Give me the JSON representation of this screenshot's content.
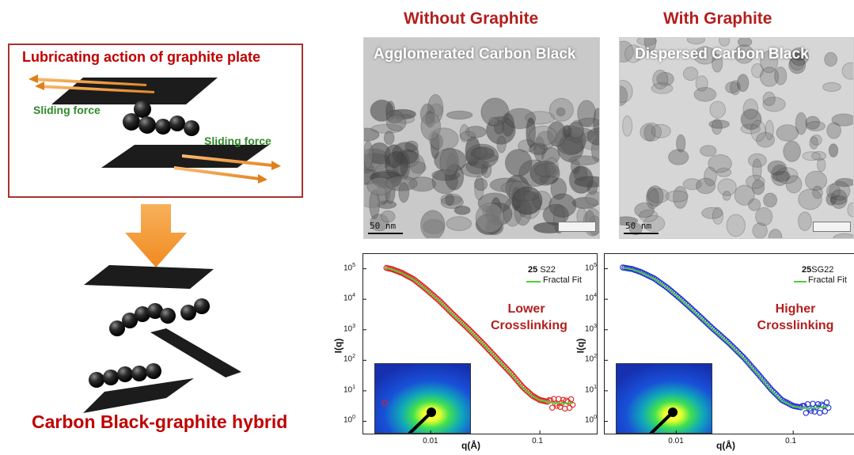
{
  "schematic": {
    "title": "Lubricating action of graphite plate",
    "sliding_force_left": "Sliding force",
    "sliding_force_right": "Sliding force",
    "hybrid_label": "Carbon Black-graphite hybrid"
  },
  "columns": {
    "without": {
      "header": "Without Graphite",
      "tem_label": "Agglomerated Carbon Black",
      "scale_bar": "50 nm"
    },
    "with": {
      "header": "With Graphite",
      "tem_label": "Dispersed Carbon Black",
      "scale_bar": "50 nm"
    }
  },
  "colors": {
    "title_red": "#c00000",
    "sliding_green": "#2f8a2a",
    "arrow_orange": "#f0962f",
    "series_red": "#e0211d",
    "series_blue": "#1f2fd6",
    "fit_green": "#4fce3a"
  },
  "chart_data": [
    {
      "type": "scatter",
      "xscale": "log",
      "yscale": "log",
      "xlabel": "q(Å)",
      "ylabel": "I(q)",
      "xlim": [
        0.003,
        0.25
      ],
      "ylim": [
        0.6,
        200000
      ],
      "x_ticks": [
        "0.01",
        "0.1"
      ],
      "y_ticks": [
        "10^0",
        "10^1",
        "10^2",
        "10^3",
        "10^4",
        "10^5"
      ],
      "legend": {
        "sample_prefix": "25",
        "sample_name": "S22",
        "fit_name": "Fractal Fit",
        "position": "top-right"
      },
      "annotation": [
        "Lower",
        "Crosslinking"
      ],
      "series": [
        {
          "name": "S22",
          "marker": "open-circle",
          "color": "#e0211d",
          "x": [
            0.0038,
            0.0045,
            0.0055,
            0.007,
            0.009,
            0.012,
            0.016,
            0.022,
            0.03,
            0.04,
            0.055,
            0.07,
            0.085,
            0.1,
            0.12,
            0.15,
            0.18,
            0.2
          ],
          "y": [
            110000,
            95000,
            72000,
            45000,
            22000,
            9000,
            3200,
            1100,
            360,
            120,
            36,
            13,
            7,
            5,
            4.3,
            4,
            4,
            4
          ]
        },
        {
          "name": "Fractal Fit",
          "marker": "line",
          "color": "#4fce3a",
          "x": [
            0.0038,
            0.0045,
            0.0055,
            0.007,
            0.009,
            0.012,
            0.016,
            0.022,
            0.03,
            0.04,
            0.055,
            0.07,
            0.085,
            0.1,
            0.12,
            0.15,
            0.18,
            0.2
          ],
          "y": [
            108000,
            93000,
            70000,
            44000,
            21500,
            8800,
            3100,
            1080,
            350,
            118,
            35,
            12.5,
            6.8,
            4.9,
            4.2,
            3.9,
            3.9,
            3.9
          ]
        }
      ]
    },
    {
      "type": "scatter",
      "xscale": "log",
      "yscale": "log",
      "xlabel": "q(Å)",
      "ylabel": "I(q)",
      "xlim": [
        0.003,
        0.25
      ],
      "ylim": [
        0.6,
        200000
      ],
      "x_ticks": [
        "0.01",
        "0.1"
      ],
      "y_ticks": [
        "10^0",
        "10^1",
        "10^2",
        "10^3",
        "10^4",
        "10^5"
      ],
      "legend": {
        "sample_prefix": "25",
        "sample_name": "SG22",
        "fit_name": "Fractal Fit",
        "position": "top-right"
      },
      "annotation": [
        "Higher",
        "Crosslinking"
      ],
      "series": [
        {
          "name": "SG22",
          "marker": "open-circle",
          "color": "#1f2fd6",
          "x": [
            0.0035,
            0.0042,
            0.005,
            0.0065,
            0.0085,
            0.011,
            0.015,
            0.02,
            0.028,
            0.038,
            0.05,
            0.065,
            0.08,
            0.1,
            0.12,
            0.15,
            0.18,
            0.2
          ],
          "y": [
            110000,
            98000,
            78000,
            48000,
            23000,
            10000,
            3400,
            1200,
            380,
            120,
            36,
            11,
            5,
            3.2,
            2.8,
            2.8,
            3,
            3.2
          ]
        },
        {
          "name": "Fractal Fit",
          "marker": "line",
          "color": "#4fce3a",
          "x": [
            0.0035,
            0.0042,
            0.005,
            0.0065,
            0.0085,
            0.011,
            0.015,
            0.02,
            0.028,
            0.038,
            0.05,
            0.065,
            0.08,
            0.1,
            0.12,
            0.15,
            0.18,
            0.2
          ],
          "y": [
            108000,
            96000,
            76000,
            47000,
            22500,
            9800,
            3300,
            1150,
            370,
            115,
            34,
            10.5,
            4.8,
            3.1,
            2.7,
            2.7,
            2.9,
            3.1
          ]
        }
      ]
    }
  ]
}
